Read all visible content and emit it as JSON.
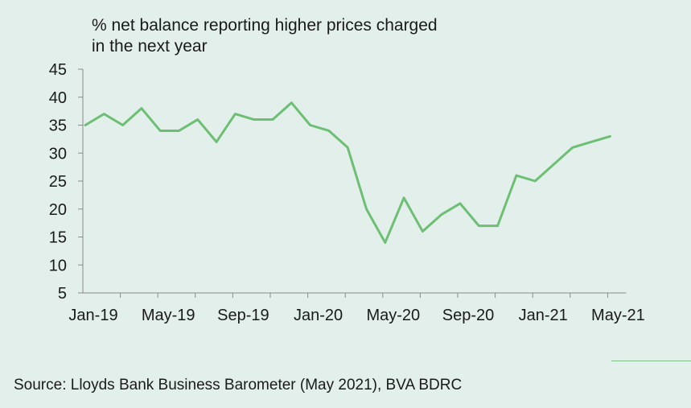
{
  "chart_data": {
    "type": "line",
    "title": "% net balance reporting higher prices charged",
    "title_line2": "in the next year",
    "xlabel": "",
    "ylabel": "",
    "ylim": [
      5,
      45
    ],
    "yticks": [
      5,
      10,
      15,
      20,
      25,
      30,
      35,
      40,
      45
    ],
    "x_tick_labels": [
      "Jan-19",
      "May-19",
      "Sep-19",
      "Jan-20",
      "May-20",
      "Sep-20",
      "Jan-21",
      "May-21"
    ],
    "x_tick_label_months": [
      0,
      4,
      8,
      12,
      16,
      20,
      24,
      28
    ],
    "x": [
      "Jan-19",
      "Feb-19",
      "Mar-19",
      "Apr-19",
      "May-19",
      "Jun-19",
      "Jul-19",
      "Aug-19",
      "Sep-19",
      "Oct-19",
      "Nov-19",
      "Dec-19",
      "Jan-20",
      "Feb-20",
      "Mar-20",
      "Apr-20",
      "May-20",
      "Jun-20",
      "Jul-20",
      "Aug-20",
      "Sep-20",
      "Oct-20",
      "Nov-20",
      "Dec-20",
      "Jan-21",
      "Feb-21",
      "Mar-21",
      "Apr-21",
      "May-21"
    ],
    "series": [
      {
        "values": [
          35,
          37,
          35,
          38,
          34,
          34,
          36,
          32,
          37,
          36,
          36,
          39,
          35,
          34,
          31,
          20,
          14,
          22,
          16,
          19,
          21,
          17,
          17,
          26,
          25,
          28,
          31,
          32,
          33
        ],
        "color": "#6dbf74"
      }
    ],
    "grid": false
  },
  "source": "Source: Lloyds Bank Business Barometer (May 2021), BVA BDRC"
}
